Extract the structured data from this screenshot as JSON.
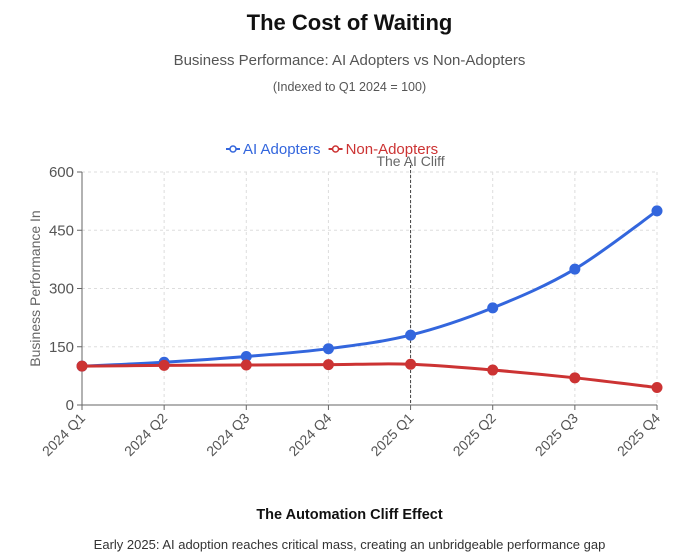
{
  "title": "The Cost of Waiting",
  "subtitle": "Business Performance: AI Adopters vs Non-Adopters",
  "note": "(Indexed to Q1 2024 = 100)",
  "footer": {
    "title": "The Automation Cliff Effect",
    "description": "Early 2025: AI adoption reaches critical mass, creating an unbridgeable performance gap"
  },
  "chart_data": {
    "type": "line",
    "title": "The Cost of Waiting",
    "xlabel": "",
    "ylabel": "Business Performance In",
    "ylim": [
      0,
      600
    ],
    "yticks": [
      0,
      150,
      300,
      450,
      600
    ],
    "grid": true,
    "legend": "top-center",
    "categories": [
      "2024 Q1",
      "2024 Q2",
      "2024 Q3",
      "2024 Q4",
      "2025 Q1",
      "2025 Q2",
      "2025 Q3",
      "2025 Q4"
    ],
    "series": [
      {
        "name": "AI Adopters",
        "color": "#3366dd",
        "values": [
          100,
          110,
          125,
          145,
          180,
          250,
          350,
          500
        ]
      },
      {
        "name": "Non-Adopters",
        "color": "#cc3333",
        "values": [
          100,
          102,
          103,
          104,
          105,
          90,
          70,
          45
        ]
      }
    ],
    "annotations": [
      {
        "text": "The AI Cliff",
        "x": "2025 Q1"
      }
    ]
  }
}
